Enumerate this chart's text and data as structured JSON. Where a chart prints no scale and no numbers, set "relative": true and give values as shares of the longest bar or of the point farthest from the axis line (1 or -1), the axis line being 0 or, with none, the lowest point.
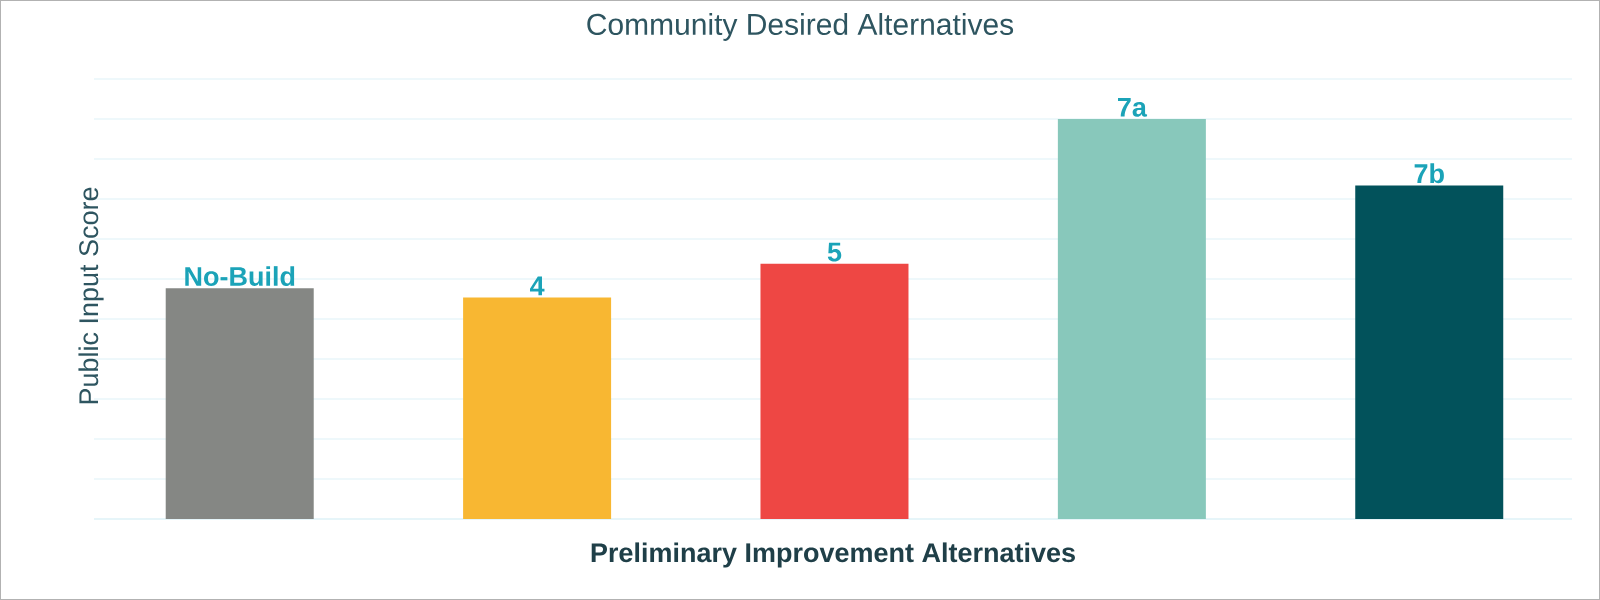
{
  "chart_data": {
    "type": "bar",
    "title": "Community Desired Alternatives",
    "xlabel": "Preliminary Improvement Alternatives",
    "ylabel": "Public Input Score",
    "categories": [
      "No-Build",
      "4",
      "5",
      "7a",
      "7b"
    ],
    "values": [
      0.577,
      0.554,
      0.638,
      1,
      0.834
    ],
    "colors": [
      "#858784",
      "#f8b732",
      "#ee4744",
      "#88c8bb",
      "#02525b"
    ],
    "relative": true,
    "grid": "y"
  }
}
